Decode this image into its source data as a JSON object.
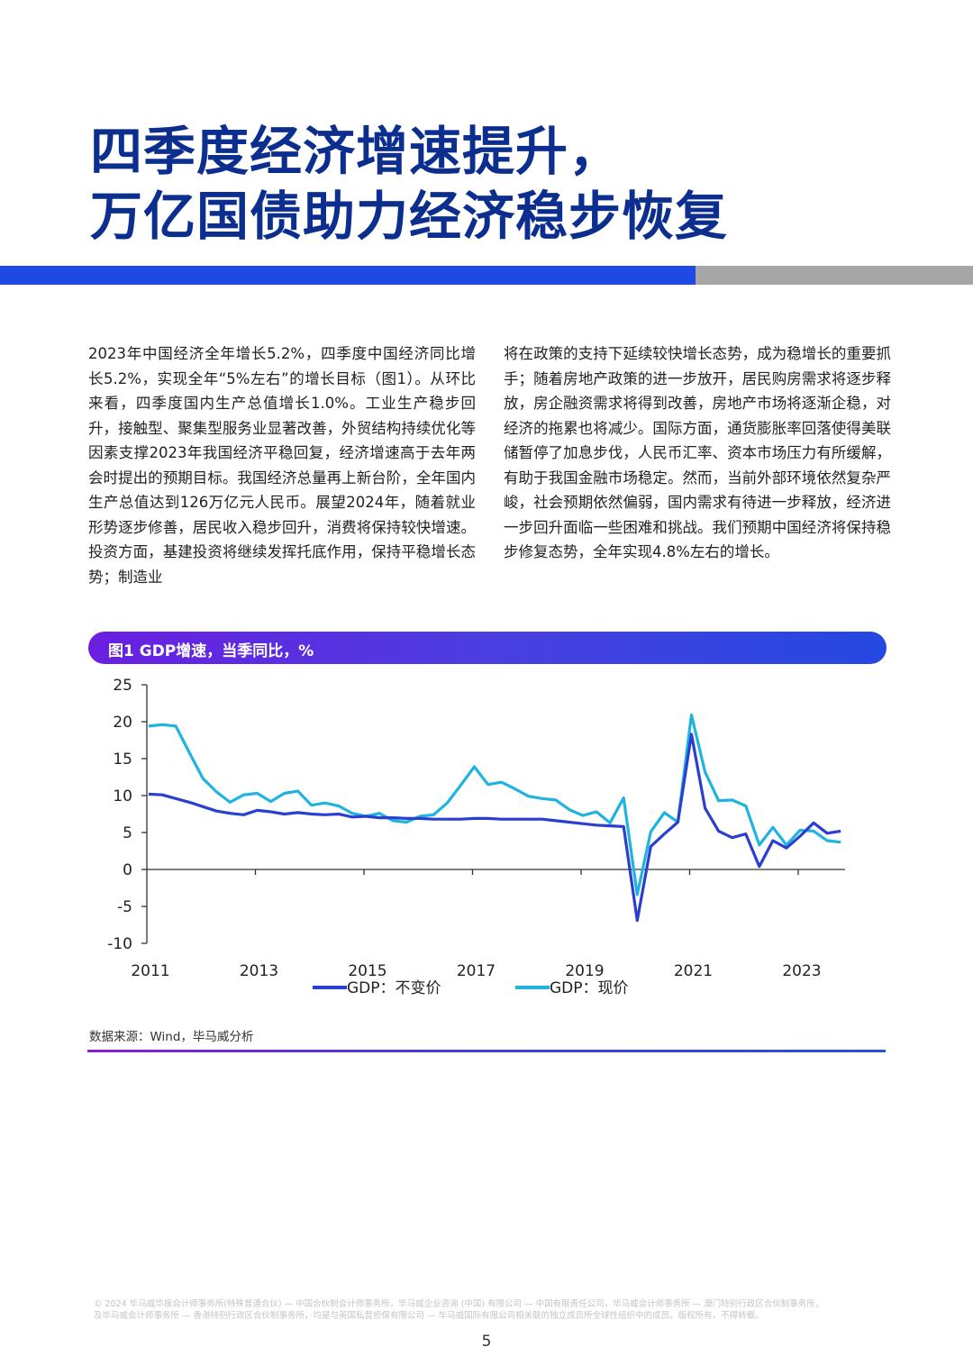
{
  "title": {
    "line1": "四季度经济增速提升，",
    "line2": "万亿国债助力经济稳步恢复"
  },
  "colors": {
    "title": "#0c2f8f",
    "accent_bar": "#1e49e2",
    "grey_bar": "#a6a6a6",
    "series_real": "#2a3fd0",
    "series_nominal": "#1fb4e0"
  },
  "body": {
    "left": "2023年中国经济全年增长5.2%，四季度中国经济同比增长5.2%，实现全年“5%左右”的增长目标（图1）。从环比来看，四季度国内生产总值增长1.0%。工业生产稳步回升，接触型、聚集型服务业显著改善，外贸结构持续优化等因素支撑2023年我国经济平稳回复，经济增速高于去年两会时提出的预期目标。我国经济总量再上新台阶，全年国内生产总值达到126万亿元人民币。展望2024年，随着就业形势逐步修善，居民收入稳步回升，消费将保持较快增速。投资方面，基建投资将继续发挥托底作用，保持平稳增长态势；制造业",
    "right": "将在政策的支持下延续较快增长态势，成为稳增长的重要抓手；随着房地产政策的进一步放开，居民购房需求将逐步释放，房企融资需求将得到改善，房地产市场将逐渐企稳，对经济的拖累也将减少。国际方面，通货膨胀率回落使得美联储暂停了加息步伐，人民币汇率、资本市场压力有所缓解，有助于我国金融市场稳定。然而，当前外部环境依然复杂严峻，社会预期依然偏弱，国内需求有待进一步释放，经济进一步回升面临一些困难和挑战。我们预期中国经济将保持稳步修复态势，全年实现4.8%左右的增长。"
  },
  "figure": {
    "header": "图1 GDP增速，当季同比，%",
    "source": "数据来源：Wind，毕马威分析"
  },
  "chart_data": {
    "type": "line",
    "title": "图1 GDP增速，当季同比，%",
    "xlabel": "",
    "ylabel": "%",
    "ylim": [
      -10,
      25
    ],
    "yticks": [
      25,
      20,
      15,
      10,
      5,
      0,
      -5,
      -10
    ],
    "xticks": [
      "2011",
      "2013",
      "2015",
      "2017",
      "2019",
      "2021",
      "2023"
    ],
    "grid": false,
    "legend_position": "bottom",
    "x": [
      "2011Q1",
      "2011Q2",
      "2011Q3",
      "2011Q4",
      "2012Q1",
      "2012Q2",
      "2012Q3",
      "2012Q4",
      "2013Q1",
      "2013Q2",
      "2013Q3",
      "2013Q4",
      "2014Q1",
      "2014Q2",
      "2014Q3",
      "2014Q4",
      "2015Q1",
      "2015Q2",
      "2015Q3",
      "2015Q4",
      "2016Q1",
      "2016Q2",
      "2016Q3",
      "2016Q4",
      "2017Q1",
      "2017Q2",
      "2017Q3",
      "2017Q4",
      "2018Q1",
      "2018Q2",
      "2018Q3",
      "2018Q4",
      "2019Q1",
      "2019Q2",
      "2019Q3",
      "2019Q4",
      "2020Q1",
      "2020Q2",
      "2020Q3",
      "2020Q4",
      "2021Q1",
      "2021Q2",
      "2021Q3",
      "2021Q4",
      "2022Q1",
      "2022Q2",
      "2022Q3",
      "2022Q4",
      "2023Q1",
      "2023Q2",
      "2023Q3",
      "2023Q4"
    ],
    "series": [
      {
        "name": "GDP：不变价",
        "color": "#2a3fd0",
        "values": [
          10.2,
          10.1,
          9.6,
          9.1,
          8.5,
          7.9,
          7.6,
          7.4,
          8.0,
          7.8,
          7.5,
          7.7,
          7.5,
          7.4,
          7.5,
          7.1,
          7.2,
          7.0,
          7.0,
          6.9,
          6.9,
          6.8,
          6.8,
          6.8,
          6.9,
          6.9,
          6.8,
          6.8,
          6.8,
          6.8,
          6.6,
          6.4,
          6.2,
          6.0,
          5.9,
          5.8,
          -6.9,
          3.1,
          4.8,
          6.4,
          18.3,
          8.3,
          5.2,
          4.3,
          4.8,
          0.4,
          3.9,
          2.9,
          4.5,
          6.3,
          4.9,
          5.2
        ]
      },
      {
        "name": "GDP：现价",
        "color": "#1fb4e0",
        "values": [
          19.4,
          19.6,
          19.4,
          15.8,
          12.3,
          10.5,
          9.1,
          10.1,
          10.3,
          9.2,
          10.3,
          10.6,
          8.7,
          9.0,
          8.6,
          7.6,
          7.2,
          7.6,
          6.6,
          6.4,
          7.2,
          7.4,
          9.0,
          11.4,
          13.9,
          11.5,
          11.8,
          10.9,
          9.9,
          9.6,
          9.4,
          8.1,
          7.3,
          7.8,
          6.3,
          9.7,
          -3.4,
          5.1,
          7.7,
          6.4,
          20.9,
          13.2,
          9.3,
          9.4,
          8.6,
          3.3,
          5.7,
          3.3,
          5.3,
          5.2,
          3.9,
          3.7
        ]
      }
    ]
  },
  "footer": {
    "copyright_line1": "© 2024 毕马威华振会计师事务所(特殊普通合伙) — 中国合伙制会计师事务所，毕马威企业咨询 (中国) 有限公司 — 中国有限责任公司，毕马威会计师事务所 — 澳门特别行政区合伙制事务所，",
    "copyright_line2": "及毕马威会计师事务所 — 香港特别行政区合伙制事务所，均是与英国私营担保有限公司 — 毕马威国际有限公司相关联的独立成员所全球性组织中的成员。版权所有，不得转载。",
    "page": "5"
  }
}
